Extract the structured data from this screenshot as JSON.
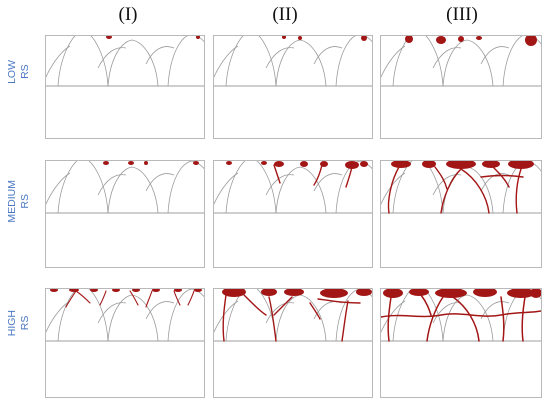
{
  "columns": [
    {
      "label": "(I)"
    },
    {
      "label": "(II)"
    },
    {
      "label": "(III)"
    }
  ],
  "rows": [
    {
      "line1": "LOW",
      "line2": "RS"
    },
    {
      "line1": "MEDIUM",
      "line2": "RS"
    },
    {
      "line1": "HIGH",
      "line2": "RS"
    }
  ],
  "colors": {
    "crack": "#a31616",
    "grain_outline": "#9c9c9c",
    "interface_line": "#9c9c9c",
    "label_blue": "#4a78c2"
  }
}
